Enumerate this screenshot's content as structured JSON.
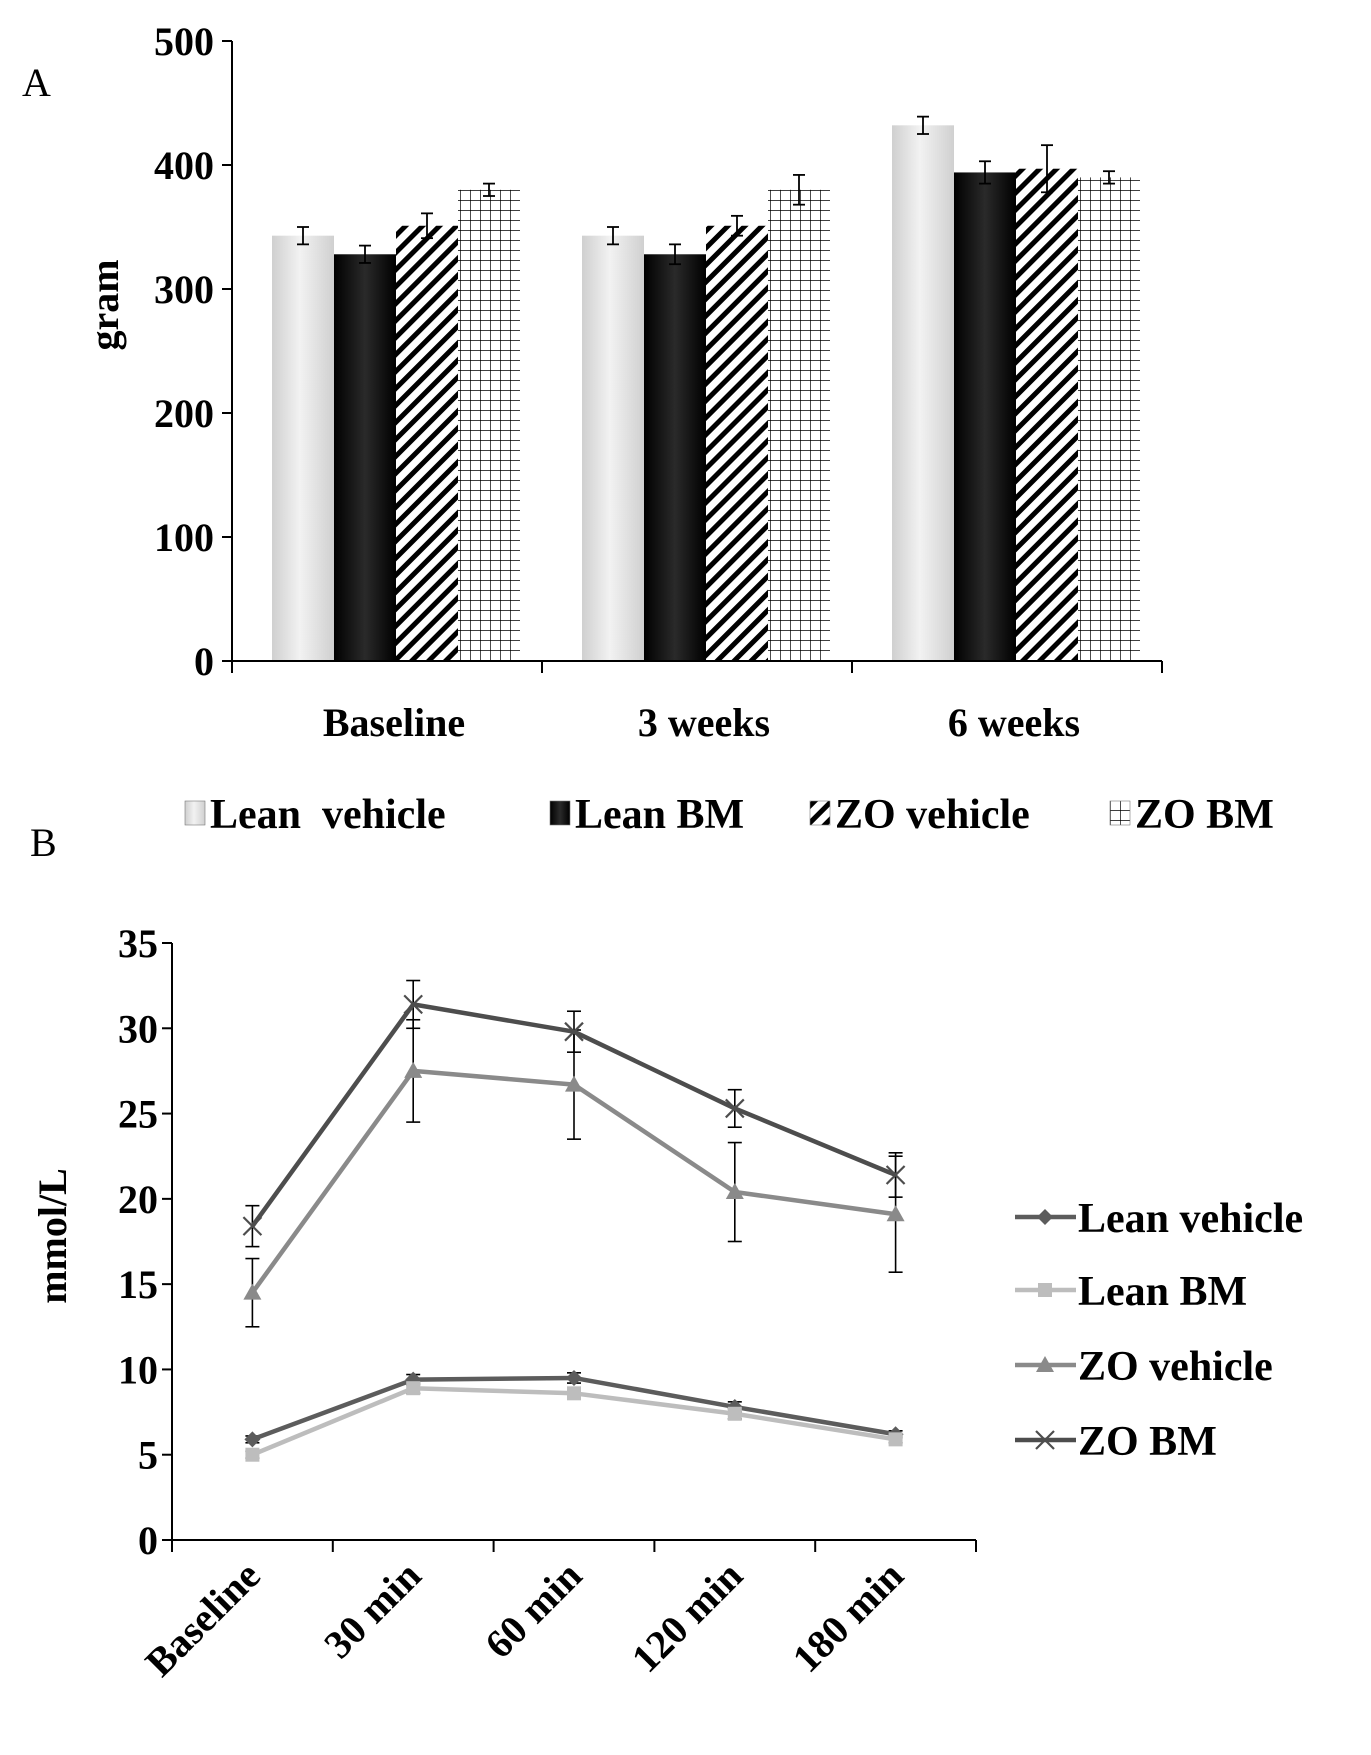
{
  "chart_data": [
    {
      "panel": "A",
      "type": "bar",
      "title": "",
      "xlabel": "",
      "ylabel": "gram",
      "ylim": [
        0,
        500
      ],
      "yticks": [
        "0",
        "100",
        "200",
        "300",
        "400",
        "500"
      ],
      "categories": [
        "Baseline",
        "3 weeks",
        "6 weeks"
      ],
      "legend_position": "bottom",
      "series": [
        {
          "name": "Lean  vehicle",
          "values": [
            343,
            343,
            432
          ],
          "errors": [
            7,
            7,
            7
          ],
          "color": "#e6e6e6",
          "pattern": "light-gradient"
        },
        {
          "name": "Lean BM",
          "values": [
            328,
            328,
            394
          ],
          "errors": [
            7,
            8,
            9
          ],
          "color": "#111111",
          "pattern": "solid-dark"
        },
        {
          "name": "ZO vehicle",
          "values": [
            351,
            351,
            397
          ],
          "errors": [
            10,
            8,
            19
          ],
          "color": "#ffffff",
          "pattern": "diagonal-hatch"
        },
        {
          "name": "ZO BM",
          "values": [
            380,
            380,
            390
          ],
          "errors": [
            5,
            12,
            5
          ],
          "color": "#ffffff",
          "pattern": "grid"
        }
      ]
    },
    {
      "panel": "B",
      "type": "line",
      "title": "",
      "xlabel": "",
      "ylabel": "mmol/L",
      "ylim": [
        0,
        35
      ],
      "yticks": [
        "0",
        "5",
        "10",
        "15",
        "20",
        "25",
        "30",
        "35"
      ],
      "categories": [
        "Baseline",
        "30 min",
        "60 min",
        "120 min",
        "180 min"
      ],
      "legend_position": "right",
      "series": [
        {
          "name": "Lean vehicle",
          "values": [
            5.9,
            9.4,
            9.5,
            7.8,
            6.2
          ],
          "errors": [
            0.2,
            0.3,
            0.3,
            0.3,
            0.2
          ],
          "color": "#5c5c5c",
          "marker": "diamond"
        },
        {
          "name": "Lean BM",
          "values": [
            5.0,
            8.9,
            8.6,
            7.4,
            5.9
          ],
          "errors": [
            0.2,
            0.3,
            0.3,
            0.3,
            0.2
          ],
          "color": "#bdbdbd",
          "marker": "square"
        },
        {
          "name": "ZO vehicle",
          "values": [
            14.5,
            27.5,
            26.7,
            20.4,
            19.1
          ],
          "errors": [
            2.0,
            3.0,
            3.2,
            2.9,
            3.4
          ],
          "color": "#8a8a8a",
          "marker": "triangle"
        },
        {
          "name": "ZO BM",
          "values": [
            18.4,
            31.4,
            29.8,
            25.3,
            21.4
          ],
          "errors": [
            1.2,
            1.4,
            1.2,
            1.1,
            1.3
          ],
          "color": "#4d4d4d",
          "marker": "x"
        }
      ]
    }
  ]
}
